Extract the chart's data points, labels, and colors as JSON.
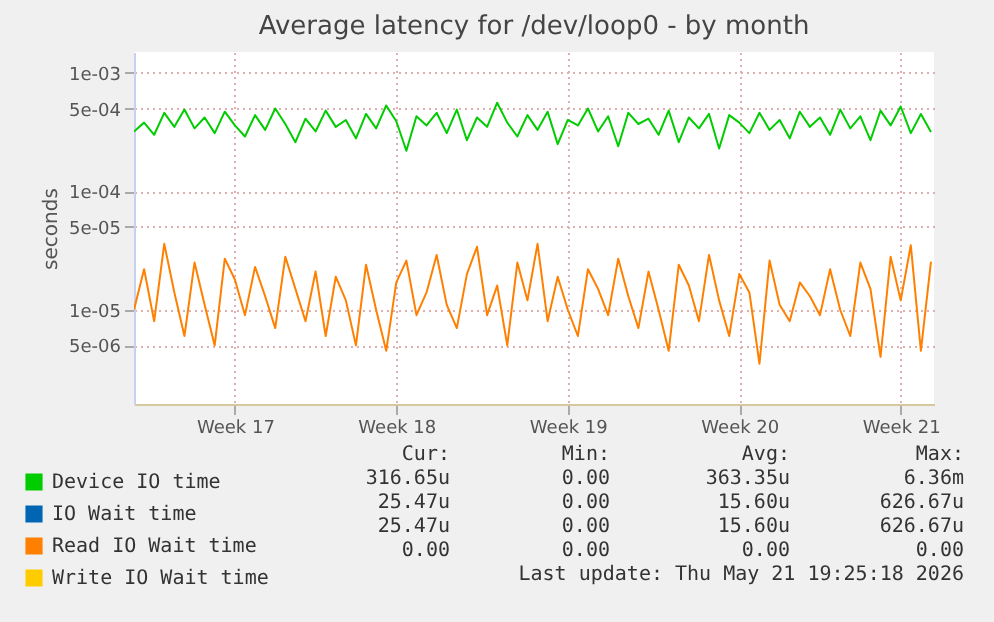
{
  "chart_data": {
    "type": "line",
    "title": "Average latency for /dev/loop0 - by month",
    "ylabel": "seconds",
    "log": "y",
    "categories": [
      null,
      null,
      null,
      null,
      null,
      null,
      null,
      null,
      null,
      null,
      "Week 17",
      null,
      null,
      null,
      null,
      null,
      null,
      null,
      null,
      null,
      null,
      null,
      null,
      null,
      null,
      null,
      "Week 18",
      null,
      null,
      null,
      null,
      null,
      null,
      null,
      null,
      null,
      null,
      null,
      null,
      null,
      null,
      null,
      null,
      "Week 19",
      null,
      null,
      null,
      null,
      null,
      null,
      null,
      null,
      null,
      null,
      null,
      null,
      null,
      null,
      null,
      null,
      "Week 20",
      null,
      null,
      null,
      null,
      null,
      null,
      null,
      null,
      null,
      null,
      null,
      null,
      null,
      null,
      null,
      "Week 21",
      null,
      null,
      null
    ],
    "ylim": [
      1.6e-06,
      0.0015
    ],
    "yticks": [
      {
        "value": 0.001,
        "label": "1e-03"
      },
      {
        "value": 0.0005,
        "label": "5e-04"
      },
      {
        "value": 0.0001,
        "label": "1e-04"
      },
      {
        "value": 5e-05,
        "label": "5e-05"
      },
      {
        "value": 1e-05,
        "label": "1e-05"
      },
      {
        "value": 5e-06,
        "label": "5e-06"
      }
    ],
    "grid": true,
    "legend": "bottom left",
    "series": [
      {
        "name": "Device IO time",
        "color": "#00cc00",
        "values": [
          0.00032,
          0.00038,
          0.0003,
          0.00046,
          0.00035,
          0.00049,
          0.00034,
          0.00042,
          0.00031,
          0.00047,
          0.00036,
          0.00029,
          0.00044,
          0.00033,
          0.0005,
          0.00037,
          0.00026,
          0.00041,
          0.00032,
          0.00048,
          0.00035,
          0.0004,
          0.00028,
          0.00045,
          0.00034,
          0.00053,
          0.00039,
          0.00022,
          0.00043,
          0.00036,
          0.00046,
          0.00031,
          0.00049,
          0.00027,
          0.00042,
          0.00035,
          0.00056,
          0.00038,
          0.00029,
          0.00044,
          0.00033,
          0.00047,
          0.00025,
          0.0004,
          0.00036,
          0.0005,
          0.00032,
          0.00043,
          0.00024,
          0.00046,
          0.00037,
          0.00041,
          0.0003,
          0.00048,
          0.00026,
          0.00042,
          0.00034,
          0.00045,
          0.00023,
          0.00044,
          0.00038,
          0.00031,
          0.00046,
          0.00033,
          0.0004,
          0.00028,
          0.00047,
          0.00035,
          0.00042,
          0.0003,
          0.00049,
          0.00034,
          0.00043,
          0.00027,
          0.00048,
          0.00036,
          0.00052,
          0.00031,
          0.00045,
          0.00031665
        ]
      },
      {
        "name": "IO Wait time",
        "color": "#0066b3",
        "values": [
          null,
          null,
          null,
          null,
          null,
          null,
          null,
          null,
          null,
          null,
          null,
          null,
          null,
          null,
          null,
          null,
          null,
          null,
          null,
          null,
          null,
          null,
          null,
          null,
          null,
          null,
          null,
          null,
          null,
          null,
          null,
          null,
          null,
          null,
          null,
          null,
          null,
          null,
          null,
          null,
          null,
          null,
          null,
          null,
          null,
          null,
          null,
          null,
          null,
          null,
          null,
          null,
          null,
          null,
          null,
          null,
          null,
          null,
          null,
          null,
          null,
          null,
          null,
          null,
          null,
          null,
          null,
          null,
          null,
          null,
          null,
          null,
          null,
          null,
          null,
          null,
          null,
          null,
          null,
          null
        ]
      },
      {
        "name": "Read IO Wait time",
        "color": "#ff8000",
        "values": [
          1e-05,
          2.2e-05,
          8e-06,
          3.6e-05,
          1.4e-05,
          6e-06,
          2.5e-05,
          1.1e-05,
          5e-06,
          2.7e-05,
          1.8e-05,
          9e-06,
          2.3e-05,
          1.3e-05,
          7e-06,
          2.8e-05,
          1.5e-05,
          8e-06,
          2.1e-05,
          6e-06,
          1.9e-05,
          1.2e-05,
          5e-06,
          2.4e-05,
          1e-05,
          4.5e-06,
          1.7e-05,
          2.6e-05,
          9e-06,
          1.4e-05,
          2.9e-05,
          1.1e-05,
          7e-06,
          2e-05,
          3.4e-05,
          9e-06,
          1.6e-05,
          5e-06,
          2.5e-05,
          1.2e-05,
          3.6e-05,
          8e-06,
          1.9e-05,
          1e-05,
          6e-06,
          2.2e-05,
          1.5e-05,
          9e-06,
          2.7e-05,
          1.3e-05,
          7e-06,
          2.1e-05,
          1e-05,
          4.5e-06,
          2.4e-05,
          1.6e-05,
          8e-06,
          2.9e-05,
          1.2e-05,
          6e-06,
          2e-05,
          1.4e-05,
          3.5e-06,
          2.6e-05,
          1.1e-05,
          8e-06,
          1.7e-05,
          1.3e-05,
          9e-06,
          2.2e-05,
          1e-05,
          6e-06,
          2.5e-05,
          1.5e-05,
          4e-06,
          2.8e-05,
          1.2e-05,
          3.5e-05,
          4.5e-06,
          2.547e-05
        ]
      },
      {
        "name": "Write IO Wait time",
        "color": "#ffcc00",
        "values": [
          null,
          null,
          null,
          null,
          null,
          null,
          null,
          null,
          null,
          null,
          null,
          null,
          null,
          null,
          null,
          null,
          null,
          null,
          null,
          null,
          null,
          null,
          null,
          null,
          null,
          null,
          null,
          null,
          null,
          null,
          null,
          null,
          null,
          null,
          null,
          null,
          null,
          null,
          null,
          null,
          null,
          null,
          null,
          null,
          null,
          null,
          null,
          null,
          null,
          null,
          null,
          null,
          null,
          null,
          null,
          null,
          null,
          null,
          null,
          null,
          null,
          null,
          null,
          null,
          null,
          null,
          null,
          null,
          null,
          null,
          null,
          null,
          null,
          null,
          null,
          null,
          null,
          null,
          null,
          null
        ]
      }
    ],
    "annotations": [
      "Cur:",
      "Min:",
      "Avg:",
      "Max:",
      "316.65u",
      "0.00",
      "363.35u",
      "6.36m",
      "25.47u",
      "0.00",
      "15.60u",
      "626.67u",
      "25.47u",
      "0.00",
      "15.60u",
      "626.67u",
      "0.00",
      "0.00",
      "0.00",
      "0.00",
      "Last update: Thu May 21 19:25:18 2026"
    ]
  }
}
